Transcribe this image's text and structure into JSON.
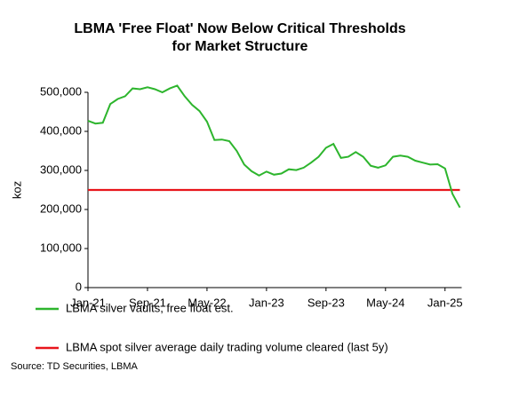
{
  "chart_data": {
    "type": "line",
    "title": [
      "LBMA 'Free Float'  Now Below Critical Thresholds",
      "for Market Structure"
    ],
    "y_label": "koz",
    "categories": [
      "Jan-21",
      null,
      null,
      null,
      null,
      null,
      null,
      null,
      "Sep-21",
      null,
      null,
      null,
      null,
      null,
      null,
      null,
      "May-22",
      null,
      null,
      null,
      null,
      null,
      null,
      null,
      "Jan-23",
      null,
      null,
      null,
      null,
      null,
      null,
      null,
      "Sep-23",
      null,
      null,
      null,
      null,
      null,
      null,
      null,
      "May-24",
      null,
      null,
      null,
      null,
      null,
      null,
      null,
      "Jan-25",
      null,
      null
    ],
    "series": [
      {
        "name": "LBMA silver vaults, free float est.",
        "color": "#2db52d",
        "values": [
          427000,
          420000,
          422000,
          470000,
          483000,
          490000,
          510000,
          508000,
          513000,
          508000,
          500000,
          510000,
          517000,
          490000,
          468000,
          452000,
          425000,
          378000,
          379000,
          375000,
          350000,
          315000,
          298000,
          287000,
          297000,
          289000,
          292000,
          303000,
          301000,
          307000,
          320000,
          335000,
          358000,
          368000,
          332000,
          335000,
          347000,
          335000,
          312000,
          307000,
          313000,
          335000,
          338000,
          335000,
          325000,
          320000,
          315000,
          316000,
          305000,
          240000,
          205000
        ]
      },
      {
        "name": "LBMA spot silver average daily trading volume cleared (last 5y)",
        "color": "#e8151b",
        "values": [
          250000,
          250000,
          250000,
          250000,
          250000,
          250000,
          250000,
          250000,
          250000,
          250000,
          250000,
          250000,
          250000,
          250000,
          250000,
          250000,
          250000,
          250000,
          250000,
          250000,
          250000,
          250000,
          250000,
          250000,
          250000,
          250000,
          250000,
          250000,
          250000,
          250000,
          250000,
          250000,
          250000,
          250000,
          250000,
          250000,
          250000,
          250000,
          250000,
          250000,
          250000,
          250000,
          250000,
          250000,
          250000,
          250000,
          250000,
          250000,
          250000,
          250000,
          250000
        ]
      }
    ],
    "ylim": [
      0,
      500000
    ],
    "yticks": [
      0,
      {
        "value": 100000,
        "label": "100,000"
      },
      {
        "value": 200000,
        "label": "200,000"
      },
      {
        "value": 300000,
        "label": "300,000"
      },
      {
        "value": 400000,
        "label": "400,000"
      },
      {
        "value": 500000,
        "label": "500,000"
      }
    ],
    "grid": false,
    "source": "Source: TD Securities, LBMA"
  }
}
